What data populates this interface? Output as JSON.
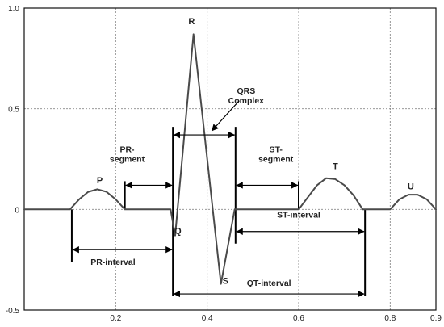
{
  "chart_data": {
    "type": "line",
    "title": "",
    "xlabel": "",
    "ylabel": "",
    "xlim": [
      0,
      0.9
    ],
    "ylim": [
      -0.5,
      1.0
    ],
    "grid": true,
    "x_ticks": [
      0.2,
      0.4,
      0.6,
      0.8,
      0.9
    ],
    "x_tick_labels": [
      "0.2",
      "0.4",
      "0.6",
      "0.8",
      "0.9"
    ],
    "y_ticks": [
      -0.5,
      0,
      0.5,
      1.0
    ],
    "y_tick_labels": [
      "-0.5",
      "0",
      "0.5",
      "1.0"
    ],
    "series": [
      {
        "x": [
          0,
          0.1,
          0.12,
          0.14,
          0.16,
          0.18,
          0.2,
          0.22,
          0.32,
          0.33,
          0.37,
          0.43,
          0.46,
          0.6,
          0.62,
          0.64,
          0.66,
          0.68,
          0.7,
          0.72,
          0.74,
          0.8,
          0.82,
          0.84,
          0.86,
          0.88,
          0.9
        ],
        "y": [
          0,
          0,
          0.05,
          0.087,
          0.1,
          0.087,
          0.05,
          0,
          0,
          -0.13,
          0.87,
          -0.37,
          0,
          0,
          0.06,
          0.12,
          0.155,
          0.15,
          0.12,
          0.07,
          0,
          0,
          0.05,
          0.073,
          0.073,
          0.05,
          0
        ]
      }
    ],
    "annotations": {
      "waves": [
        {
          "label": "P",
          "x": 0.165,
          "y": 0.13
        },
        {
          "label": "R",
          "x": 0.366,
          "y": 0.92
        },
        {
          "label": "Q",
          "x": 0.336,
          "y": -0.12
        },
        {
          "label": "S",
          "x": 0.44,
          "y": -0.37
        },
        {
          "label": "T",
          "x": 0.68,
          "y": 0.2
        },
        {
          "label": "U",
          "x": 0.845,
          "y": 0.1
        }
      ],
      "markers": [
        {
          "x": 0.104,
          "y1": 0,
          "y2": -0.26
        },
        {
          "x": 0.22,
          "y1": 0.14,
          "y2": 0
        },
        {
          "x": 0.325,
          "y1": 0.41,
          "y2": -0.43
        },
        {
          "x": 0.462,
          "y1": 0.41,
          "y2": -0.17
        },
        {
          "x": 0.6,
          "y1": 0.14,
          "y2": 0
        },
        {
          "x": 0.745,
          "y1": 0,
          "y2": -0.43
        }
      ],
      "intervals": [
        {
          "label": "PR-",
          "label2": "segment",
          "x1": 0.22,
          "x2": 0.325,
          "y": 0.12,
          "lx": 0.225,
          "ly": 0.285
        },
        {
          "label": "PR-interval",
          "label2": "",
          "x1": 0.104,
          "x2": 0.325,
          "y": -0.2,
          "lx": 0.194,
          "ly": -0.275
        },
        {
          "label": "QRS",
          "label2": "Complex",
          "x1": 0.325,
          "x2": 0.462,
          "y": 0.37,
          "lx": 0.485,
          "ly": 0.575
        },
        {
          "label": "ST-",
          "label2": "segment",
          "x1": 0.462,
          "x2": 0.6,
          "y": 0.12,
          "lx": 0.55,
          "ly": 0.285
        },
        {
          "label": "ST-interval",
          "label2": "",
          "x1": 0.462,
          "x2": 0.745,
          "y": -0.11,
          "lx": 0.6,
          "ly": -0.04
        },
        {
          "label": "QT-interval",
          "label2": "",
          "x1": 0.325,
          "x2": 0.745,
          "y": -0.42,
          "lx": 0.535,
          "ly": -0.38
        }
      ],
      "pointer": {
        "from_x": 0.47,
        "from_y": 0.54,
        "to_x": 0.41,
        "to_y": 0.39
      }
    }
  }
}
